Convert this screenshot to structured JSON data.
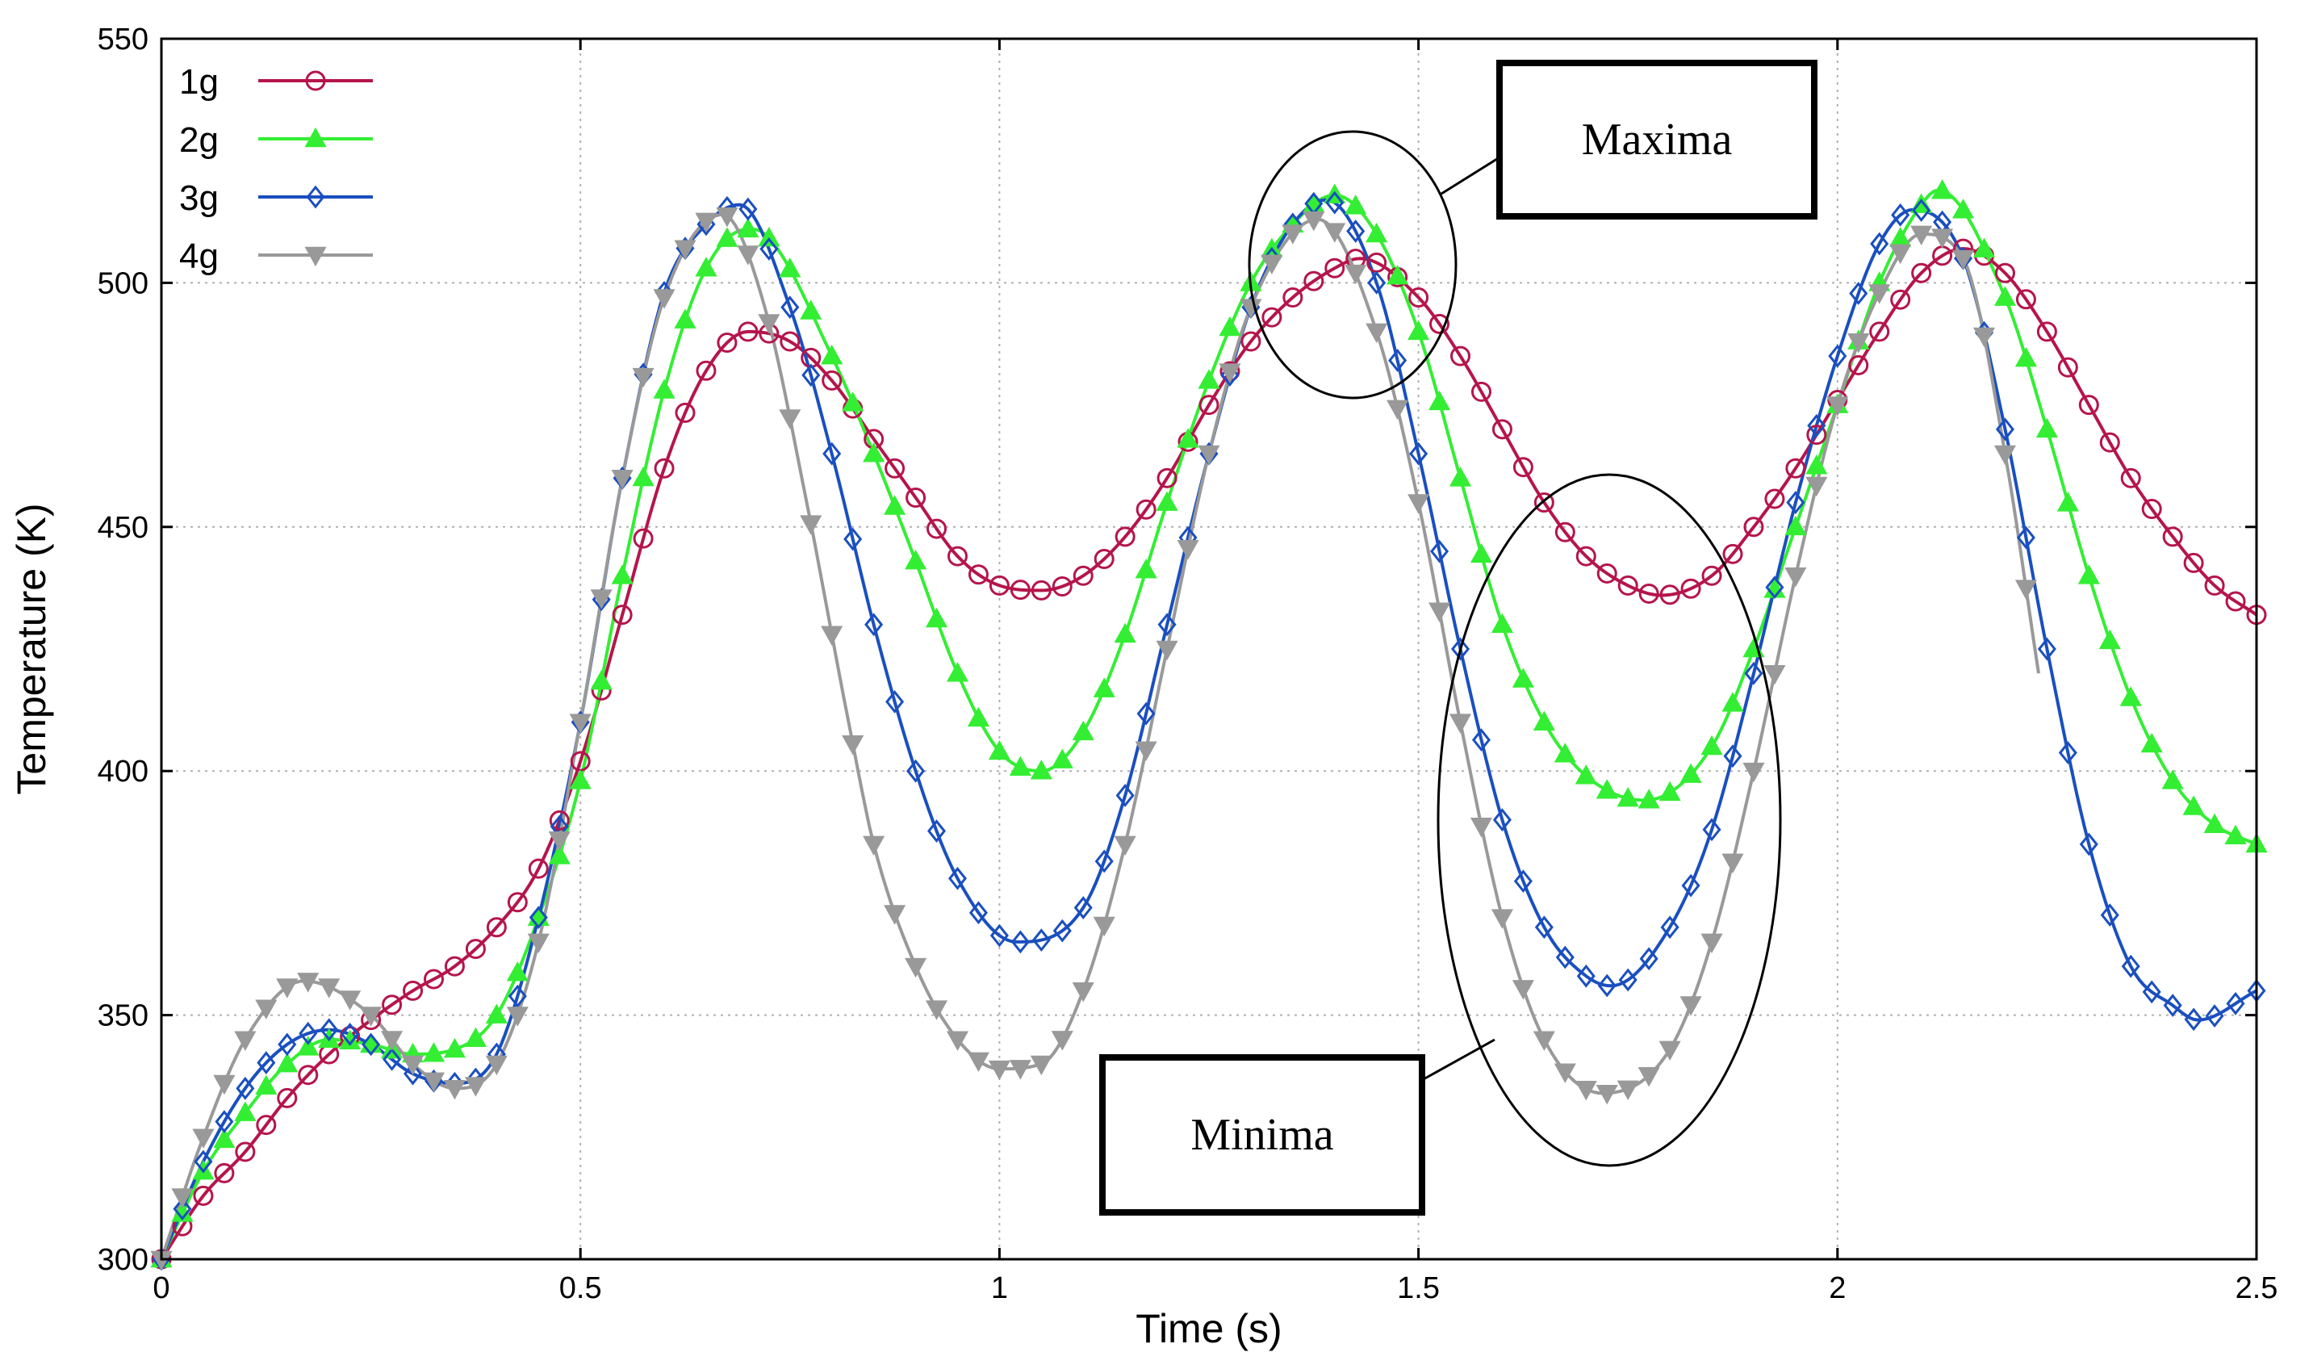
{
  "chart_data": {
    "type": "line",
    "title": "",
    "xlabel": "Time (s)",
    "ylabel": "Temperature (K)",
    "xlim": [
      0,
      2.5
    ],
    "ylim": [
      300,
      550
    ],
    "xticks": [
      0,
      0.5,
      1,
      1.5,
      2,
      2.5
    ],
    "xtick_labels": [
      "0",
      "0.5",
      "1",
      "1.5",
      "2",
      "2.5"
    ],
    "yticks": [
      300,
      350,
      400,
      450,
      500,
      550
    ],
    "ytick_labels": [
      "300",
      "350",
      "400",
      "450",
      "500",
      "550"
    ],
    "grid": true,
    "legend_position": "top-left",
    "series": [
      {
        "name": "1g",
        "color": "#b5154b",
        "marker": "circle",
        "end": 2.5,
        "x": [
          0,
          0.05,
          0.1,
          0.15,
          0.2,
          0.25,
          0.3,
          0.35,
          0.4,
          0.45,
          0.5,
          0.55,
          0.6,
          0.65,
          0.7,
          0.75,
          0.8,
          0.85,
          0.9,
          0.95,
          1.0,
          1.05,
          1.1,
          1.15,
          1.2,
          1.25,
          1.3,
          1.35,
          1.4,
          1.43,
          1.5,
          1.55,
          1.6,
          1.65,
          1.7,
          1.75,
          1.79,
          1.85,
          1.9,
          1.95,
          2.0,
          2.05,
          2.1,
          2.15,
          2.2,
          2.25,
          2.3,
          2.35,
          2.4,
          2.45,
          2.5
        ],
        "y": [
          300,
          313,
          322,
          333,
          342,
          349,
          355,
          360,
          368,
          380,
          402,
          432,
          462,
          482,
          490,
          488,
          480,
          468,
          456,
          444,
          438,
          437,
          440,
          448,
          460,
          475,
          488,
          497,
          503,
          505,
          497,
          485,
          470,
          455,
          444,
          438,
          436,
          440,
          450,
          462,
          476,
          490,
          502,
          507,
          502,
          490,
          475,
          460,
          448,
          438,
          432
        ]
      },
      {
        "name": "2g",
        "color": "#33ee33",
        "marker": "triangle-up",
        "end": 2.5,
        "x": [
          0,
          0.05,
          0.1,
          0.15,
          0.2,
          0.25,
          0.3,
          0.35,
          0.4,
          0.45,
          0.5,
          0.55,
          0.6,
          0.65,
          0.7,
          0.72,
          0.8,
          0.85,
          0.9,
          0.95,
          1.0,
          1.05,
          1.1,
          1.15,
          1.2,
          1.25,
          1.3,
          1.35,
          1.4,
          1.45,
          1.5,
          1.55,
          1.6,
          1.65,
          1.7,
          1.77,
          1.85,
          1.9,
          1.95,
          2.0,
          2.05,
          2.1,
          2.12,
          2.2,
          2.25,
          2.3,
          2.35,
          2.4,
          2.45,
          2.5
        ],
        "y": [
          300,
          318,
          330,
          340,
          345,
          344,
          342,
          343,
          350,
          370,
          398,
          440,
          478,
          503,
          511,
          510,
          485,
          465,
          443,
          420,
          404,
          400,
          408,
          428,
          455,
          480,
          500,
          512,
          518,
          510,
          490,
          460,
          430,
          410,
          399,
          394,
          405,
          425,
          450,
          475,
          500,
          516,
          519,
          497,
          470,
          440,
          415,
          398,
          389,
          385
        ]
      },
      {
        "name": "3g",
        "color": "#1a4fbf",
        "marker": "diamond",
        "end": 2.5,
        "x": [
          0,
          0.05,
          0.1,
          0.15,
          0.2,
          0.25,
          0.3,
          0.35,
          0.4,
          0.45,
          0.5,
          0.55,
          0.6,
          0.65,
          0.69,
          0.75,
          0.8,
          0.85,
          0.9,
          0.95,
          1.02,
          1.1,
          1.15,
          1.2,
          1.25,
          1.3,
          1.35,
          1.39,
          1.45,
          1.5,
          1.55,
          1.6,
          1.65,
          1.7,
          1.73,
          1.8,
          1.85,
          1.9,
          1.95,
          2.0,
          2.05,
          2.09,
          2.15,
          2.2,
          2.25,
          2.3,
          2.35,
          2.4,
          2.43,
          2.5
        ],
        "y": [
          300,
          320,
          335,
          344,
          347,
          344,
          338,
          336,
          342,
          370,
          410,
          460,
          498,
          512,
          516,
          495,
          465,
          430,
          400,
          378,
          365,
          372,
          395,
          430,
          465,
          495,
          512,
          517,
          500,
          465,
          425,
          390,
          368,
          358,
          356,
          368,
          388,
          420,
          455,
          485,
          508,
          515,
          505,
          470,
          425,
          385,
          360,
          352,
          349,
          355
        ]
      },
      {
        "name": "4g",
        "color": "#999999",
        "marker": "triangle-down",
        "end": 2.24,
        "x": [
          0,
          0.05,
          0.1,
          0.17,
          0.25,
          0.3,
          0.35,
          0.4,
          0.45,
          0.5,
          0.55,
          0.6,
          0.67,
          0.72,
          0.77,
          0.82,
          0.85,
          0.9,
          0.95,
          1.0,
          1.05,
          1.1,
          1.15,
          1.2,
          1.25,
          1.3,
          1.38,
          1.45,
          1.5,
          1.55,
          1.6,
          1.65,
          1.72,
          1.8,
          1.85,
          1.9,
          1.95,
          2.0,
          2.05,
          2.1,
          2.15,
          2.2,
          2.24
        ],
        "y": [
          300,
          325,
          345,
          357,
          350,
          340,
          335,
          340,
          365,
          410,
          460,
          497,
          514,
          495,
          455,
          410,
          385,
          360,
          345,
          339,
          340,
          355,
          385,
          425,
          465,
          495,
          513,
          490,
          455,
          410,
          370,
          345,
          334,
          343,
          365,
          400,
          440,
          475,
          498,
          510,
          505,
          465,
          420
        ]
      }
    ],
    "annotations": [
      {
        "text": "Maxima",
        "target": "peaks near t = 1.4 s"
      },
      {
        "text": "Minima",
        "target": "troughs near t = 1.72 s"
      }
    ]
  }
}
